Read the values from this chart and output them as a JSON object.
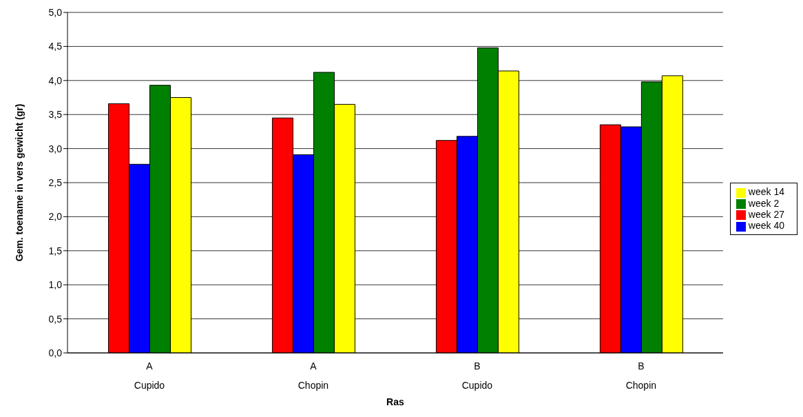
{
  "chart_data": {
    "type": "bar",
    "xlabel": "Ras",
    "ylabel": "Gem. toename in vers gewicht (gr)",
    "categories": [
      "A\nCupido",
      "A\nChopin",
      "B\nCupido",
      "B\nChopin"
    ],
    "series": [
      {
        "name": "week 27",
        "color": "#ff0000",
        "values": [
          3.66,
          3.45,
          3.12,
          3.35
        ]
      },
      {
        "name": "week 40",
        "color": "#0000ff",
        "values": [
          2.77,
          2.91,
          3.18,
          3.32
        ]
      },
      {
        "name": "week 2",
        "color": "#008000",
        "values": [
          3.93,
          4.12,
          4.48,
          3.98
        ]
      },
      {
        "name": "week 14",
        "color": "#ffff00",
        "values": [
          3.75,
          3.65,
          4.14,
          4.07
        ]
      }
    ],
    "ylim": [
      0,
      5
    ],
    "yticks": [
      {
        "value": 0,
        "label": "0,0"
      },
      {
        "value": 0.5,
        "label": "0,5"
      },
      {
        "value": 1,
        "label": "1,0"
      },
      {
        "value": 1.5,
        "label": "1,5"
      },
      {
        "value": 2,
        "label": "2,0"
      },
      {
        "value": 2.5,
        "label": "2,5"
      },
      {
        "value": 3,
        "label": "3,0"
      },
      {
        "value": 3.5,
        "label": "3,5"
      },
      {
        "value": 4,
        "label": "4,0"
      },
      {
        "value": 4.5,
        "label": "4,5"
      },
      {
        "value": 5,
        "label": "5,0"
      }
    ],
    "grid": "y",
    "legend": "right"
  }
}
